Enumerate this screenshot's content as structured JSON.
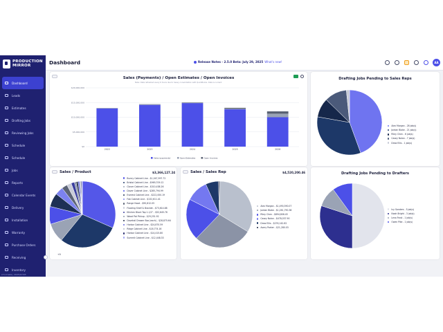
{
  "sidebar": {
    "brand_line1": "PRODUCTION",
    "brand_line2": "MIRROR",
    "items": [
      {
        "label": "Dashboard",
        "icon": "dashboard-icon"
      },
      {
        "label": "Leads",
        "icon": "leads-icon"
      },
      {
        "label": "Estimates",
        "icon": "estimates-icon"
      },
      {
        "label": "Drafting Jobs",
        "icon": "drafting-icon"
      },
      {
        "label": "Reviewing Jobs",
        "icon": "reviewing-icon"
      },
      {
        "label": "Schedule",
        "icon": "schedule-icon"
      },
      {
        "label": "Schedule",
        "icon": "calendar-icon"
      },
      {
        "label": "Jobs",
        "icon": "jobs-icon"
      },
      {
        "label": "Reports",
        "icon": "reports-icon"
      },
      {
        "label": "Calendar Events",
        "icon": "calendar-events-icon"
      },
      {
        "label": "Delivery",
        "icon": "truck-icon"
      },
      {
        "label": "Installation",
        "icon": "wrench-icon"
      },
      {
        "label": "Warranty",
        "icon": "shield-icon"
      },
      {
        "label": "Purchase Orders",
        "icon": "cart-icon"
      },
      {
        "label": "Receiving",
        "icon": "box-icon"
      },
      {
        "label": "Inventory",
        "icon": "inventory-icon"
      }
    ],
    "footer_text": "2.5.0 beta | 2025/07/03"
  },
  "header": {
    "title": "Dashboard",
    "release_text": "Release Notes - 2.5.0 Beta: July 29, 2025",
    "release_link": "What's new!",
    "avatar_initials": "AA",
    "icons": [
      "bell-icon",
      "chat-icon",
      "lightbulb-icon",
      "moon-icon",
      "help-icon"
    ]
  },
  "sales_card": {
    "title": "Sales (Payments) / Open Estimates / Open Invoices",
    "note": "Note: Data refreshed every 6 hours due to heavy consolidation with QuickBooks. Data is current."
  },
  "product_card": {
    "title": "Sales / Product",
    "total": "$3,366,127.24"
  },
  "rep_card": {
    "title": "Sales / Sales Rep",
    "total": "$4,520,200.46"
  },
  "pending_reps_card": {
    "title": "Drafting Jobs Pending to Sales Reps"
  },
  "pending_drafters_card": {
    "title": "Drafting Jobs Pending to Drafters"
  },
  "more_label": "+9",
  "colors": {
    "primary": "#4c50e8",
    "sidebar": "#1f2170",
    "navy": "#1d3868",
    "slate": "#9aa3b5"
  },
  "chart_data": [
    {
      "type": "bar",
      "title": "Sales (Payments) / Open Estimates / Open Invoices",
      "categories": [
        "2022",
        "2023",
        "2024",
        "2025",
        "2026"
      ],
      "stacked": true,
      "series": [
        {
          "name": "Sales (payments)",
          "color": "#4c50e8",
          "values": [
            13000000,
            14200000,
            14800000,
            12700000,
            10000000
          ]
        },
        {
          "name": "Open Estimates",
          "color": "#9aa3b5",
          "values": [
            100000,
            150000,
            150000,
            200000,
            1200000
          ]
        },
        {
          "name": "Open Invoices",
          "color": "#5a6273",
          "values": [
            50000,
            80000,
            100000,
            300000,
            800000
          ]
        }
      ],
      "yticks": [
        "$0",
        "$5,000,000",
        "$10,000,000",
        "$15,000,000",
        "$20,000,000"
      ],
      "ylim": [
        0,
        20000000
      ],
      "grid": true,
      "legend_position": "bottom"
    },
    {
      "type": "pie",
      "title": "Sales / Product",
      "slices": [
        {
          "label": "Bunny Cabinet Line - $1,047,997.72",
          "value": 1047997.72,
          "color": "#5457e8"
        },
        {
          "label": "Bristol Cabinet Line - $969,709.12",
          "value": 969709.12,
          "color": "#1d3868"
        },
        {
          "label": "Clover Cabinet Line - $310,438.26",
          "value": 310438.26,
          "color": "#9aa3b5"
        },
        {
          "label": "Dover Cabinet Line - $285,794.99",
          "value": 285794.99,
          "color": "#4c50e8"
        },
        {
          "label": "Everest Cabinet Line - $222,000.19",
          "value": 222000.19,
          "color": "#1e3055"
        },
        {
          "label": "Fab Cabinet Line - $132,611.41",
          "value": 132611.41,
          "color": "#7c82f0"
        },
        {
          "label": "Range Hood - $90,812.05",
          "value": 90812.05,
          "color": "#5c6476"
        },
        {
          "label": "Floating Shelf & Bracket - $73,614.88",
          "value": 73614.88,
          "color": "#c9ccd8"
        },
        {
          "label": "Kitchen Block Top 1-1/2\" - $52,645.76",
          "value": 52645.76,
          "color": "#3a3e9e"
        },
        {
          "label": "Wood Pot Pickup - $29,251.92",
          "value": 29251.92,
          "color": "#8a94a8"
        },
        {
          "label": "Dovetail Drawer Box (each) - $28,875.64",
          "value": 28875.64,
          "color": "#1f2b48"
        },
        {
          "label": "Harbor Cabinet Line - $24,870.59",
          "value": 24870.59,
          "color": "#6569e0"
        },
        {
          "label": "Ridge Cabinet Line - $18,774.16",
          "value": 18774.16,
          "color": "#b3b9c9"
        },
        {
          "label": "Harbor Cabinet Line - $14,415.80",
          "value": 14415.8,
          "color": "#2b2f70"
        },
        {
          "label": "Summit Cabinet Line - $12,448.33",
          "value": 12448.33,
          "color": "#a2a6f2"
        }
      ]
    },
    {
      "type": "pie",
      "title": "Sales / Sales Rep",
      "slices": [
        {
          "label": "Alex Morgan - $1,490,390.07",
          "value": 1490390.07,
          "color": "#b9c0cd"
        },
        {
          "label": "Jordan Blake - $1,261,790.36",
          "value": 1261790.36,
          "color": "#8b93a6"
        },
        {
          "label": "Riley Chen - $894,806.45",
          "value": 894806.45,
          "color": "#4c50e8"
        },
        {
          "label": "Casey Nolan - $478,037.90",
          "value": 478037.9,
          "color": "#7478f0"
        },
        {
          "label": "Drew Ellis - $276,142.82",
          "value": 276142.82,
          "color": "#1d3868"
        },
        {
          "label": "Avery Parker - $21,280.03",
          "value": 21280.03,
          "color": "#1b2440"
        }
      ]
    },
    {
      "type": "pie",
      "title": "Drafting Jobs Pending to Sales Reps",
      "slices": [
        {
          "label": "Alex Morgan - 28 job(s)",
          "value": 28,
          "color": "#6f74f0"
        },
        {
          "label": "Jordan Blake - 21 job(s)",
          "value": 21,
          "color": "#1d3868"
        },
        {
          "label": "Riley Chen - 6 job(s)",
          "value": 6,
          "color": "#16274a"
        },
        {
          "label": "Casey Nolan - 7 job(s)",
          "value": 7,
          "color": "#4b5a7a"
        },
        {
          "label": "Drew Ellis - 1 job(s)",
          "value": 1,
          "color": "#c6cad6"
        }
      ]
    },
    {
      "type": "pie",
      "title": "Drafting Jobs Pending to Drafters",
      "slices": [
        {
          "label": "Ivy Sanders - 5 job(s)",
          "value": 5,
          "color": "#e2e4ec"
        },
        {
          "label": "Noah Bright - 3 job(s)",
          "value": 3,
          "color": "#2d2f8f"
        },
        {
          "label": "Lena Frost - 1 job(s)",
          "value": 1,
          "color": "#9aa3b5"
        },
        {
          "label": "Owen Pike - 1 job(s)",
          "value": 1,
          "color": "#4c50e8"
        }
      ]
    }
  ]
}
